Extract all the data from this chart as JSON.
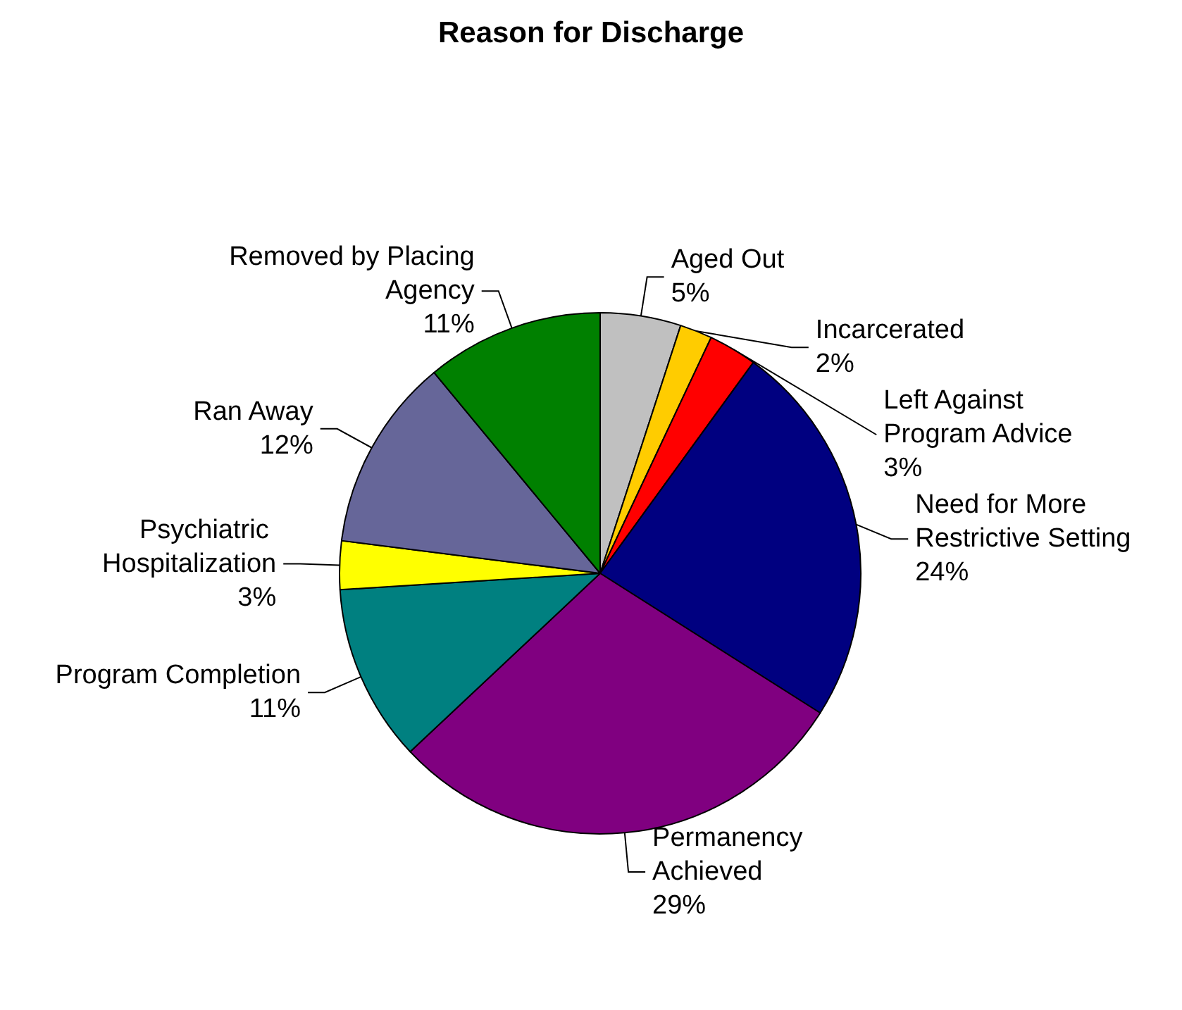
{
  "chart_data": {
    "type": "pie",
    "title": "Reason for Discharge",
    "categories": [
      "Aged Out",
      "Incarcerated",
      "Left Against Program Advice",
      "Need for More Restrictive Setting",
      "Permanency Achieved",
      "Program Completion",
      "Psychiatric Hospitalization",
      "Ran Away",
      "Removed by Placing Agency"
    ],
    "values": [
      5,
      2,
      3,
      24,
      29,
      11,
      3,
      12,
      11
    ],
    "colors": [
      "#c0c0c0",
      "#ffcc00",
      "#ff0000",
      "#000080",
      "#800080",
      "#008080",
      "#ffff00",
      "#666699",
      "#008000"
    ],
    "value_labels": [
      "5%",
      "2%",
      "3%",
      "24%",
      "29%",
      "11%",
      "3%",
      "12%",
      "11%"
    ],
    "legend": false
  }
}
